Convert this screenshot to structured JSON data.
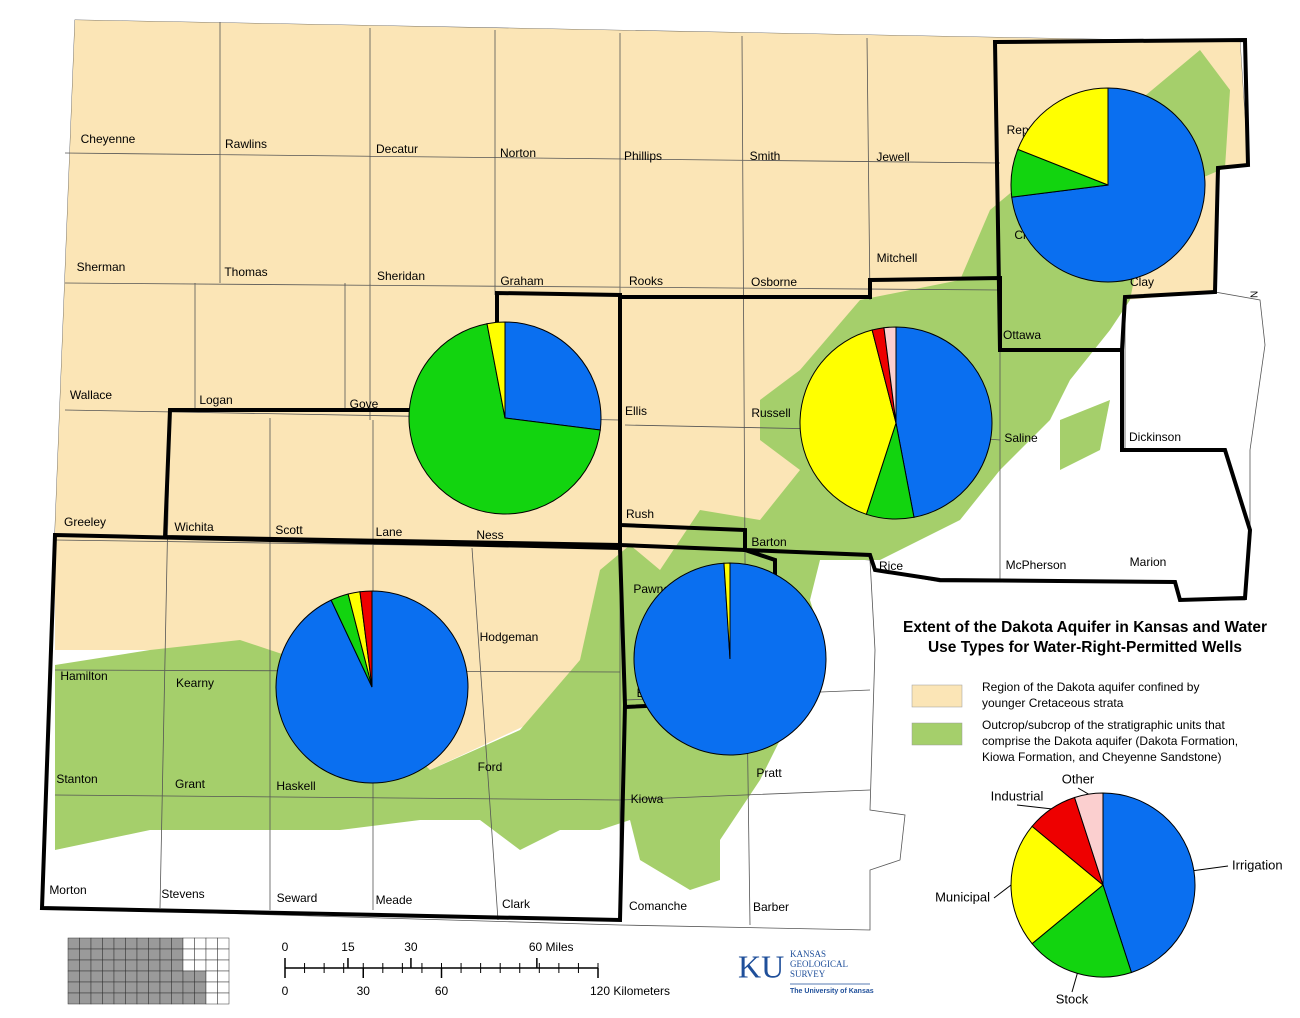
{
  "title_lines": [
    "Extent of the Dakota Aquifer in Kansas and Water",
    "Use Types for Water-Right-Permitted Wells"
  ],
  "legend": [
    {
      "lines": [
        "Region of the Dakota aquifer confined by",
        "younger Cretaceous strata"
      ],
      "color": "#fbe5b6"
    },
    {
      "lines": [
        "Outcrop/subcrop of the stratigraphic units that",
        "comprise the Dakota aquifer (Dakota Formation,",
        "Kiowa Formation, and Cheyenne Sandstone)"
      ],
      "color": "#a5cf6b"
    }
  ],
  "use_types": {
    "categories": [
      "Irrigation",
      "Stock",
      "Municipal",
      "Industrial",
      "Other"
    ],
    "colors": [
      "#0a6ff0",
      "#12d40f",
      "#ffff00",
      "#ee0000",
      "#fbcfcf"
    ]
  },
  "county_pies": [
    {
      "values": [
        73,
        8,
        19,
        0,
        0
      ]
    },
    {
      "values": [
        27,
        70,
        3,
        0,
        0
      ]
    },
    {
      "values": [
        47,
        8,
        41,
        2,
        2
      ]
    },
    {
      "values": [
        93,
        3,
        2,
        2,
        0
      ]
    },
    {
      "values": [
        99,
        0,
        1,
        0,
        0
      ]
    }
  ],
  "legend_pie": {
    "values": [
      45,
      19,
      22,
      9,
      5
    ]
  },
  "counties": [
    "Cheyenne",
    "Rawlins",
    "Decatur",
    "Norton",
    "Phillips",
    "Smith",
    "Jewell",
    "Republic",
    "Sherman",
    "Thomas",
    "Sheridan",
    "Graham",
    "Rooks",
    "Osborne",
    "Mitchell",
    "Cloud",
    "Clay",
    "Ottawa",
    "Wallace",
    "Logan",
    "Gove",
    "Ellis",
    "Russell",
    "Saline",
    "Dickinson",
    "Greeley",
    "Wichita",
    "Scott",
    "Lane",
    "Ness",
    "Rush",
    "Barton",
    "Rice",
    "McPherson",
    "Marion",
    "Pawnee",
    "Hodgeman",
    "Hamilton",
    "Kearny",
    "Edwards",
    "Ford",
    "Pratt",
    "Stanton",
    "Grant",
    "Haskell",
    "Kiowa",
    "Morton",
    "Stevens",
    "Seward",
    "Meade",
    "Clark",
    "Comanche",
    "Barber"
  ],
  "scale": {
    "miles": [
      0,
      15,
      30,
      {
        "value": 60,
        "label": "60 Miles"
      }
    ],
    "kilometers": [
      0,
      30,
      60,
      {
        "value": 120,
        "label": "120 Kilometers"
      }
    ]
  },
  "north": "N",
  "logo": {
    "mark": "KU",
    "lines": [
      "KANSAS",
      "GEOLOGICAL",
      "SURVEY"
    ],
    "university": "The University of Kansas"
  }
}
